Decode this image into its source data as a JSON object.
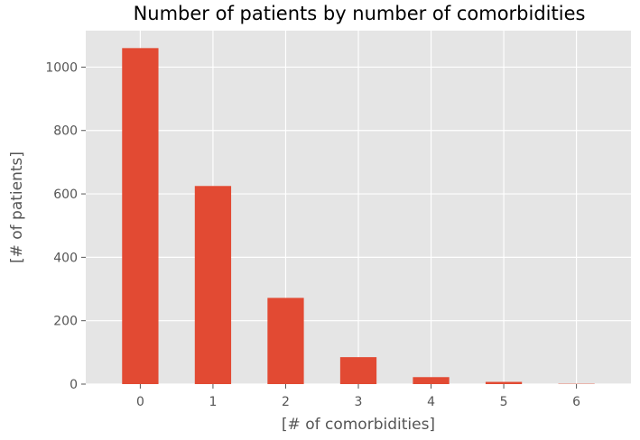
{
  "chart_data": {
    "type": "bar",
    "title": "Number of patients by number of comorbidities",
    "xlabel": "[# of comorbidities]",
    "ylabel": "[# of patients]",
    "categories": [
      "0",
      "1",
      "2",
      "3",
      "4",
      "5",
      "6"
    ],
    "values": [
      1060,
      625,
      272,
      85,
      22,
      7,
      1
    ],
    "ylim": [
      0,
      1115
    ],
    "yticks": [
      "0",
      "200",
      "400",
      "600",
      "800",
      "1000"
    ],
    "ytick_values": [
      0,
      200,
      400,
      600,
      800,
      1000
    ],
    "grid": true,
    "legend": "none",
    "colors": {
      "bar": "#E24A33",
      "plot_background": "#E5E5E5",
      "grid": "#FFFFFF",
      "text": "#555555"
    }
  }
}
